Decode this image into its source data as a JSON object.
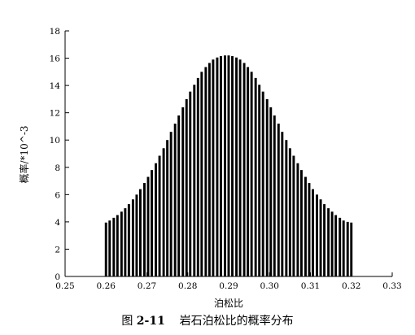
{
  "chart_data": {
    "type": "bar",
    "xlabel": "泊松比",
    "ylabel": "概率/*10^-3",
    "xlim": [
      0.25,
      0.33
    ],
    "ylim": [
      0,
      18
    ],
    "x_ticks": [
      "0.25",
      "0.26",
      "0.27",
      "0.28",
      "0.29",
      "0.30",
      "0.31",
      "0.32",
      "0.33"
    ],
    "y_ticks": [
      "0",
      "2",
      "4",
      "6",
      "8",
      "10",
      "12",
      "14",
      "16",
      "18"
    ],
    "bar_color": "#000000",
    "grid": false,
    "x": [
      0.26,
      0.2609,
      0.2619,
      0.2628,
      0.2638,
      0.2647,
      0.2656,
      0.2666,
      0.2675,
      0.2684,
      0.2694,
      0.2703,
      0.2712,
      0.2722,
      0.2731,
      0.2741,
      0.275,
      0.2759,
      0.2769,
      0.2778,
      0.2788,
      0.2797,
      0.2806,
      0.2816,
      0.2825,
      0.2834,
      0.2844,
      0.2853,
      0.2862,
      0.2872,
      0.2881,
      0.2891,
      0.29,
      0.2909,
      0.2919,
      0.2928,
      0.2938,
      0.2947,
      0.2956,
      0.2966,
      0.2975,
      0.2984,
      0.2994,
      0.3003,
      0.3012,
      0.3022,
      0.3031,
      0.3041,
      0.305,
      0.3059,
      0.3069,
      0.3078,
      0.3088,
      0.3097,
      0.3106,
      0.3116,
      0.3125,
      0.3134,
      0.3144,
      0.3153,
      0.3162,
      0.3172,
      0.3181,
      0.3191,
      0.32
    ],
    "values": [
      3.95,
      4.1,
      4.3,
      4.5,
      4.75,
      5.0,
      5.3,
      5.65,
      6.0,
      6.4,
      6.85,
      7.3,
      7.8,
      8.3,
      8.85,
      9.4,
      10.0,
      10.6,
      11.2,
      11.8,
      12.4,
      13.0,
      13.55,
      14.05,
      14.55,
      15.0,
      15.35,
      15.65,
      15.9,
      16.05,
      16.15,
      16.2,
      16.2,
      16.15,
      16.05,
      15.9,
      15.65,
      15.35,
      15.0,
      14.55,
      14.05,
      13.55,
      13.0,
      12.4,
      11.8,
      11.2,
      10.6,
      10.0,
      9.4,
      8.85,
      8.3,
      7.8,
      7.3,
      6.85,
      6.4,
      6.0,
      5.65,
      5.3,
      5.0,
      4.75,
      4.5,
      4.3,
      4.1,
      4.0,
      3.95
    ]
  },
  "caption": {
    "figure_label": "图",
    "figure_number": "2-11",
    "title": "岩石泊松比的概率分布"
  }
}
